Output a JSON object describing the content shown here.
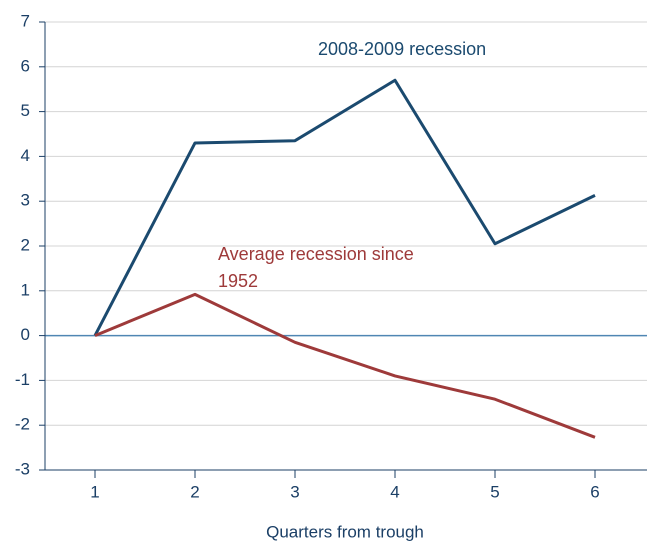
{
  "chart_data": {
    "type": "line",
    "x_label": "Quarters from trough",
    "x": [
      1,
      2,
      3,
      4,
      5,
      6
    ],
    "series": [
      {
        "name": "2008-2009 recession",
        "color": "#1b4a6f",
        "values": [
          0,
          4.3,
          4.35,
          5.7,
          2.05,
          3.13
        ]
      },
      {
        "name": "Average recession since 1952",
        "color": "#9e3a3a",
        "values": [
          0,
          0.92,
          -0.15,
          -0.9,
          -1.42,
          -2.27
        ]
      }
    ],
    "xlim": [
      0.5,
      6.5
    ],
    "xticks": [
      1,
      2,
      3,
      4,
      5,
      6
    ],
    "ylim": [
      -3,
      7
    ],
    "yticks": [
      -3,
      -2,
      -1,
      0,
      1,
      2,
      3,
      4,
      5,
      6,
      7
    ],
    "grid": true
  }
}
